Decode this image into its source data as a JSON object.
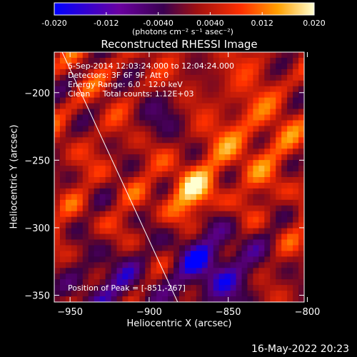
{
  "colorbar": {
    "ticks": [
      "-0.020",
      "-0.012",
      "-0.0040",
      "0.0040",
      "0.012",
      "0.020"
    ],
    "tick_values": [
      -0.02,
      -0.012,
      -0.004,
      0.004,
      0.012,
      0.02
    ],
    "range": [
      -0.02,
      0.02
    ],
    "units": "(photons cm⁻² s⁻¹ asec⁻²)"
  },
  "chart_data": {
    "type": "heatmap",
    "title": "Reconstructed RHESSI Image",
    "xlabel": "Heliocentric X (arcsec)",
    "ylabel": "Heliocentric Y (arcsec)",
    "xlim": [
      -960,
      -802
    ],
    "ylim": [
      -355,
      -170
    ],
    "x_ticks": [
      -950,
      -900,
      -850,
      -800
    ],
    "y_ticks": [
      -350,
      -300,
      -250,
      -200
    ],
    "x_tick_labels": [
      "−950",
      "−900",
      "−850",
      "−800"
    ],
    "y_tick_labels": [
      "−350",
      "−300",
      "−250",
      "−200"
    ],
    "peak": [
      -851,
      -267
    ],
    "limb_line": [
      [
        -955,
        -170
      ],
      [
        -882,
        -355
      ]
    ],
    "annotations": [
      "5-Sep-2014 12:03:24.000 to 12:04:24.000",
      "Detectors: 3F 6F 9F, Att 0",
      "Energy Range: 6.0 - 12.0 keV",
      "Clean     Total counts: 1.12E+03",
      "Position of Peak = [-851,-267]"
    ],
    "colormap": [
      "#0000ff",
      "#5a0080",
      "#3a0040",
      "#a01010",
      "#ff3000",
      "#ffa000",
      "#ffffd0"
    ]
  },
  "footer": {
    "timestamp": "16-May-2022 20:23"
  }
}
